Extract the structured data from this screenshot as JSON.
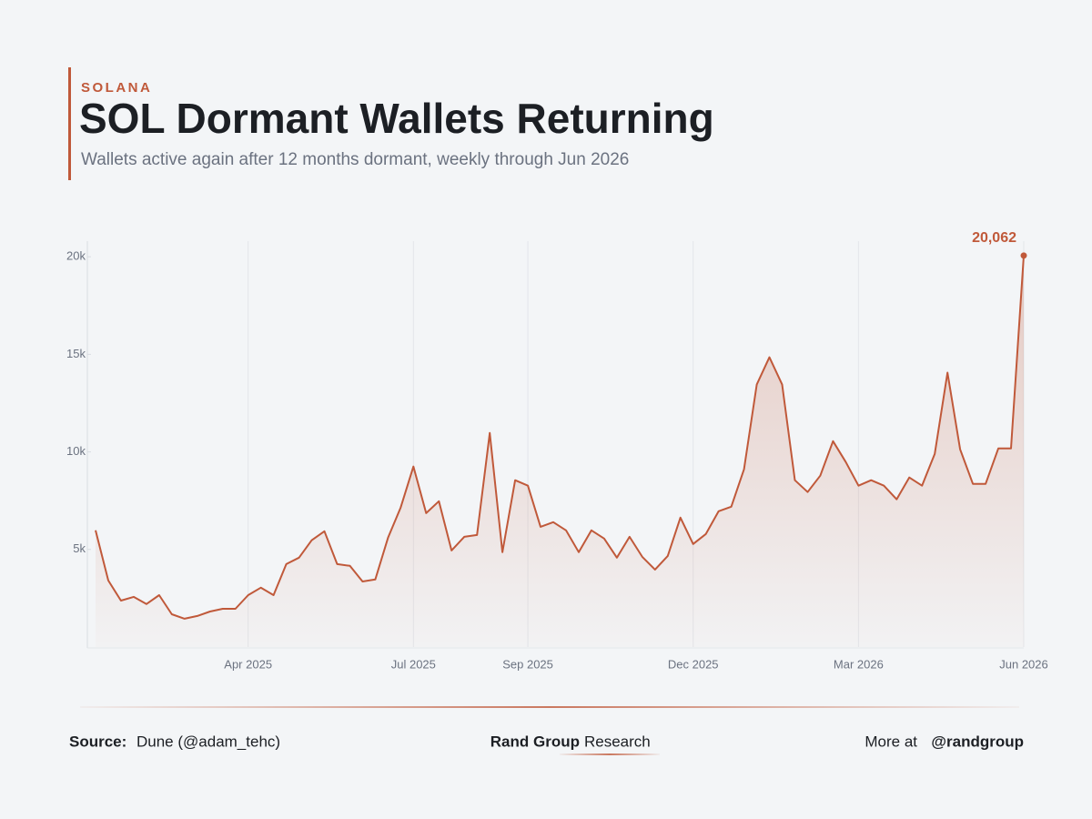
{
  "header": {
    "kicker": "SOLANA",
    "title": "SOL Dormant Wallets Returning",
    "subtitle": "Wallets active again after 12 months dormant, weekly through Jun 2026"
  },
  "chart_data": {
    "type": "line",
    "color": "#c0593a",
    "area": true,
    "xgrid": true,
    "categories": [
      null,
      null,
      null,
      null,
      null,
      null,
      null,
      null,
      null,
      null,
      null,
      null,
      "Apr 2025",
      null,
      null,
      null,
      null,
      null,
      null,
      null,
      null,
      null,
      null,
      null,
      null,
      "Jul 2025",
      null,
      null,
      null,
      null,
      null,
      null,
      null,
      null,
      "Sep 2025",
      null,
      null,
      null,
      null,
      null,
      null,
      null,
      null,
      null,
      null,
      null,
      null,
      "Dec 2025",
      null,
      null,
      null,
      null,
      null,
      null,
      null,
      null,
      null,
      null,
      null,
      null,
      "Mar 2026",
      null,
      null,
      null,
      null,
      null,
      null,
      null,
      null,
      null,
      null,
      null,
      null,
      "Jun 2026"
    ],
    "values": [
      5980,
      3410,
      2380,
      2570,
      2200,
      2660,
      1680,
      1450,
      1590,
      1820,
      1960,
      1960,
      2660,
      3040,
      2660,
      4250,
      4580,
      5470,
      5930,
      4250,
      4160,
      3360,
      3460,
      5600,
      7150,
      9250,
      6860,
      7470,
      4950,
      5650,
      5740,
      10970,
      4860,
      8550,
      8270,
      6160,
      6400,
      5980,
      4860,
      5980,
      5560,
      4580,
      5650,
      4620,
      3970,
      4670,
      6630,
      5280,
      5790,
      6960,
      7190,
      9110,
      13450,
      14850,
      13450,
      8550,
      7940,
      8780,
      10550,
      9480,
      8270,
      8550,
      8270,
      7570,
      8690,
      8270,
      9900,
      14060,
      10130,
      8360,
      8360,
      10180,
      10180,
      20062
    ],
    "value_labels": [
      null,
      null,
      null,
      null,
      null,
      null,
      null,
      null,
      null,
      null,
      null,
      null,
      null,
      null,
      null,
      null,
      null,
      null,
      null,
      null,
      null,
      null,
      null,
      null,
      null,
      null,
      null,
      null,
      null,
      null,
      null,
      null,
      null,
      null,
      null,
      null,
      null,
      null,
      null,
      null,
      null,
      null,
      null,
      null,
      null,
      null,
      null,
      null,
      null,
      null,
      null,
      null,
      null,
      null,
      null,
      null,
      null,
      null,
      null,
      null,
      null,
      null,
      null,
      null,
      null,
      null,
      null,
      null,
      null,
      null,
      null,
      null,
      null,
      "20,062"
    ],
    "ylim": [
      0,
      20800
    ],
    "yticks": [
      {
        "value": 5000,
        "label": "5k"
      },
      {
        "value": 10000,
        "label": "10k"
      },
      {
        "value": 15000,
        "label": "15k"
      },
      {
        "value": 20000,
        "label": "20k"
      }
    ]
  },
  "footer": {
    "source_label": "Source:",
    "source": "Dune (@adam_tehc)",
    "brand": "Rand Group",
    "brand_suffix": "Research",
    "more_label": "More at",
    "handle": "@randgroup"
  }
}
